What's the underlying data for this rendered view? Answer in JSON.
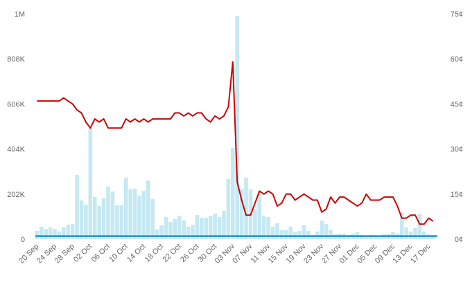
{
  "chart_data": {
    "type": "bar+line",
    "colors": {
      "bars": "#c5e9f3",
      "price_line": "#cc0000",
      "base_line": "#1e90d0"
    },
    "left_axis": {
      "ticks": [
        "0",
        "202K",
        "404K",
        "606K",
        "808K",
        "1M"
      ],
      "tick_values": [
        0,
        202000,
        404000,
        606000,
        808000,
        1010000
      ],
      "range": [
        0,
        1010000
      ]
    },
    "right_axis": {
      "ticks": [
        "0¢",
        "15¢",
        "30¢",
        "45¢",
        "60¢",
        "75¢"
      ],
      "tick_values": [
        0,
        15,
        30,
        45,
        60,
        75
      ],
      "range": [
        0,
        75
      ]
    },
    "x_ticks": [
      "20 Sep",
      "24 Sep",
      "28 Sep",
      "02 Oct",
      "06 Oct",
      "10 Oct",
      "14 Oct",
      "18 Oct",
      "22 Oct",
      "26 Oct",
      "30 Oct",
      "03 Nov",
      "07 Nov",
      "11 Nov",
      "15 Nov",
      "19 Nov",
      "23 Nov",
      "27 Nov",
      "01 Dec",
      "05 Dec",
      "09 Dec",
      "13 Dec",
      "17 Dec"
    ],
    "x_tick_step_days": 4,
    "grid": false,
    "bars": [
      37000,
      56000,
      46000,
      53000,
      46000,
      34000,
      53000,
      65000,
      68000,
      288000,
      174000,
      155000,
      499000,
      189000,
      149000,
      183000,
      236000,
      214000,
      152000,
      152000,
      276000,
      223000,
      226000,
      195000,
      217000,
      263000,
      180000,
      43000,
      62000,
      99000,
      77000,
      90000,
      105000,
      84000,
      56000,
      65000,
      108000,
      96000,
      96000,
      105000,
      115000,
      99000,
      127000,
      270000,
      409000,
      1000000,
      226000,
      276000,
      223000,
      136000,
      205000,
      102000,
      99000,
      56000,
      71000,
      40000,
      40000,
      56000,
      31000,
      37000,
      62000,
      37000,
      19000,
      34000,
      84000,
      68000,
      40000,
      22000,
      25000,
      25000,
      19000,
      25000,
      31000,
      19000,
      16000,
      19000,
      12000,
      6000,
      22000,
      25000,
      31000,
      25000,
      118000,
      53000,
      34000,
      50000,
      112000,
      34000,
      22000,
      19000
    ],
    "line": [
      46,
      46,
      46,
      46,
      46,
      46,
      47,
      46,
      45,
      43,
      42,
      39,
      37,
      40,
      39,
      40,
      37,
      37,
      37,
      37,
      40,
      39,
      40,
      39,
      40,
      39,
      40,
      40,
      40,
      40,
      40,
      42,
      42,
      41,
      42,
      41,
      42,
      42,
      40,
      39,
      41,
      40,
      41,
      44,
      59,
      19,
      13,
      8,
      8,
      12,
      16,
      15,
      16,
      15,
      11,
      12,
      15,
      15,
      13,
      14,
      15,
      14,
      13,
      13,
      9,
      10,
      14,
      12,
      14,
      14,
      13,
      12,
      11,
      12,
      15,
      13,
      13,
      13,
      14,
      14,
      14,
      11,
      7,
      7,
      8,
      8,
      5,
      5,
      7,
      6
    ],
    "base_line": 1
  }
}
